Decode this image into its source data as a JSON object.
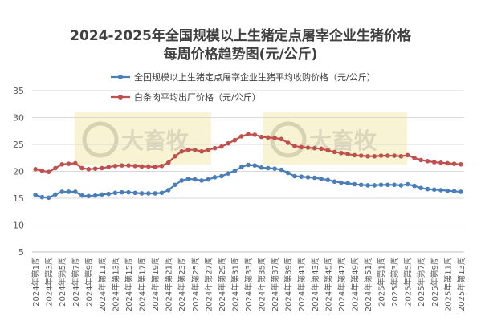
{
  "chart_data": {
    "type": "line",
    "title": "2024-2025年全国规模以上生猪定点屠宰企业生猪价格",
    "subtitle": "每周价格趋势图(元/公斤)",
    "ylim": [
      5,
      35
    ],
    "yticks": [
      5,
      10,
      15,
      20,
      25,
      30,
      35
    ],
    "grid": true,
    "legend_placement": "top-right",
    "watermark_text": "大畜牧",
    "x": [
      "2024年第1周",
      "2024年第2周",
      "2024年第3周",
      "2024年第4周",
      "2024年第5周",
      "2024年第6周",
      "2024年第7周",
      "2024年第8周",
      "2024年第9周",
      "2024年第10周",
      "2024年第11周",
      "2024年第12周",
      "2024年第13周",
      "2024年第14周",
      "2024年第15周",
      "2024年第16周",
      "2024年第17周",
      "2024年第18周",
      "2024年第19周",
      "2024年第20周",
      "2024年第21周",
      "2024年第22周",
      "2024年第23周",
      "2024年第24周",
      "2024年第25周",
      "2024年第26周",
      "2024年第27周",
      "2024年第28周",
      "2024年第29周",
      "2024年第30周",
      "2024年第31周",
      "2024年第32周",
      "2024年第33周",
      "2024年第34周",
      "2024年第35周",
      "2024年第36周",
      "2024年第37周",
      "2024年第38周",
      "2024年第39周",
      "2024年第40周",
      "2024年第41周",
      "2024年第42周",
      "2024年第43周",
      "2024年第44周",
      "2024年第45周",
      "2024年第46周",
      "2024年第47周",
      "2024年第48周",
      "2024年第49周",
      "2024年第50周",
      "2024年第51周",
      "2024年第52周",
      "2025年第1周",
      "2025年第2周",
      "2025年第3周",
      "2025年第4周",
      "2025年第5周",
      "2025年第6周",
      "2025年第7周",
      "2025年第8周",
      "2025年第9周",
      "2025年第10周",
      "2025年第11周",
      "2025年第12周",
      "2025年第13周"
    ],
    "xtick_labels": [
      "2024年第1周",
      "2024年第3周",
      "2024年第5周",
      "2024年第7周",
      "2024年第9周",
      "2024年第11周",
      "2024年第13周",
      "2024年第15周",
      "2024年第17周",
      "2024年第19周",
      "2024年第21周",
      "2024年第23周",
      "2024年第25周",
      "2024年第27周",
      "2024年第29周",
      "2024年第31周",
      "2024年第33周",
      "2024年第35周",
      "2024年第37周",
      "2024年第39周",
      "2024年第41周",
      "2024年第43周",
      "2024年第45周",
      "2024年第47周",
      "2024年第49周",
      "2024年第51周",
      "2025年第1周",
      "2025年第3周",
      "2025年第5周",
      "2025年第7周",
      "2025年第9周",
      "2025年第11周",
      "2025年第13周"
    ],
    "series": [
      {
        "name": "全国规模以上生猪定点屠宰企业生猪平均收购价格（元/公斤）",
        "color": "#4a7ebb",
        "values": [
          15.6,
          15.2,
          15.1,
          15.7,
          16.2,
          16.2,
          16.2,
          15.5,
          15.4,
          15.5,
          15.7,
          15.8,
          16.0,
          16.1,
          16.1,
          16.0,
          15.9,
          15.9,
          15.9,
          16.0,
          16.5,
          17.5,
          18.3,
          18.6,
          18.5,
          18.3,
          18.5,
          18.9,
          19.1,
          19.6,
          20.1,
          20.8,
          21.2,
          21.1,
          20.7,
          20.6,
          20.5,
          20.3,
          19.7,
          19.1,
          19.0,
          18.9,
          18.8,
          18.6,
          18.4,
          18.1,
          17.9,
          17.8,
          17.6,
          17.5,
          17.4,
          17.4,
          17.5,
          17.5,
          17.5,
          17.4,
          17.6,
          17.3,
          16.9,
          16.7,
          16.6,
          16.5,
          16.4,
          16.3,
          16.2
        ]
      },
      {
        "name": "白条肉平均出厂价格（元/公斤）",
        "color": "#c0504d",
        "values": [
          20.4,
          20.1,
          19.9,
          20.6,
          21.3,
          21.4,
          21.5,
          20.6,
          20.4,
          20.5,
          20.6,
          20.8,
          21.0,
          21.1,
          21.1,
          21.0,
          20.9,
          20.9,
          20.8,
          21.0,
          21.6,
          22.8,
          23.7,
          24.0,
          24.0,
          23.7,
          24.0,
          24.3,
          24.6,
          25.2,
          25.8,
          26.5,
          26.9,
          26.8,
          26.4,
          26.3,
          26.2,
          26.0,
          25.3,
          24.7,
          24.5,
          24.4,
          24.3,
          24.2,
          23.9,
          23.6,
          23.4,
          23.2,
          23.0,
          22.9,
          22.8,
          22.8,
          22.9,
          22.9,
          22.9,
          22.8,
          23.0,
          22.5,
          22.1,
          21.9,
          21.7,
          21.6,
          21.5,
          21.4,
          21.3
        ]
      }
    ]
  }
}
